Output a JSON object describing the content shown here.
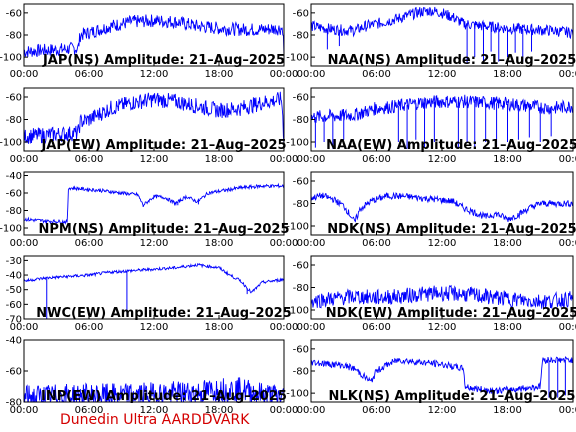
{
  "footer": "Dunedin Ultra AARDDVARK",
  "colors": {
    "trace": "#0000ff",
    "footer": "#d40000",
    "axes": "#000000"
  },
  "chart_data": [
    {
      "type": "line",
      "title": "JAP(NS) Amplitude: 21–Aug–2025",
      "x_ticks": [
        "00:00",
        "06:00",
        "12:00",
        "18:00",
        "00:00"
      ],
      "y_ticks": [
        "-60",
        "-80",
        "-100"
      ],
      "ylim": [
        -108,
        -52
      ],
      "series": [
        {
          "x": [
            0,
            5,
            5.2,
            6,
            8,
            10,
            12,
            14,
            16,
            18,
            20,
            22,
            23.9,
            24
          ],
          "y": [
            -95,
            -92,
            -80,
            -78,
            -72,
            -68,
            -67,
            -68,
            -72,
            -74,
            -75,
            -75,
            -74,
            -98
          ],
          "noise": 6
        }
      ]
    },
    {
      "type": "line",
      "title": "NAA(NS) Amplitude: 21–Aug–2025",
      "x_ticks": [
        "00:00",
        "06:00",
        "12:00",
        "18:00",
        "00:00"
      ],
      "y_ticks": [
        "-60",
        "-80",
        "-100"
      ],
      "ylim": [
        -108,
        -52
      ],
      "series": [
        {
          "x": [
            0,
            2,
            4,
            5,
            6,
            8,
            10,
            11,
            12,
            13,
            14,
            16,
            18,
            20,
            22,
            24
          ],
          "y": [
            -72,
            -75,
            -76,
            -72,
            -70,
            -65,
            -59,
            -58,
            -60,
            -64,
            -70,
            -72,
            -74,
            -75,
            -76,
            -78
          ],
          "noise": 5,
          "dips": [
            [
              1.5,
              -93
            ],
            [
              2.6,
              -90
            ],
            [
              14.3,
              -105
            ],
            [
              15,
              -100
            ],
            [
              15.8,
              -105
            ],
            [
              16.5,
              -95
            ],
            [
              17.2,
              -104
            ],
            [
              18,
              -100
            ],
            [
              18.7,
              -96
            ],
            [
              19.4,
              -104
            ],
            [
              20.2,
              -95
            ]
          ]
        }
      ]
    },
    {
      "type": "line",
      "title": "JAP(EW) Amplitude: 21–Aug–2025",
      "x_ticks": [
        "00:00",
        "06:00",
        "12:00",
        "18:00",
        "00:00"
      ],
      "y_ticks": [
        "-60",
        "-80",
        "-100"
      ],
      "ylim": [
        -108,
        -52
      ],
      "series": [
        {
          "x": [
            0,
            5,
            5.2,
            6,
            8,
            10,
            12,
            14,
            16,
            18,
            20,
            22,
            23.8,
            24
          ],
          "y": [
            -95,
            -92,
            -82,
            -80,
            -70,
            -65,
            -62,
            -64,
            -68,
            -72,
            -70,
            -65,
            -62,
            -100
          ],
          "noise": 7
        }
      ]
    },
    {
      "type": "line",
      "title": "NAA(EW) Amplitude: 21–Aug–2025",
      "x_ticks": [
        "00:00",
        "06:00",
        "12:00",
        "18:00",
        "00:00"
      ],
      "y_ticks": [
        "-60",
        "-80",
        "-100"
      ],
      "ylim": [
        -108,
        -52
      ],
      "series": [
        {
          "x": [
            0,
            4,
            6,
            8,
            10,
            12,
            14,
            16,
            18,
            20,
            22,
            24
          ],
          "y": [
            -78,
            -76,
            -70,
            -68,
            -65,
            -64,
            -64,
            -65,
            -66,
            -68,
            -70,
            -68
          ],
          "noise": 6,
          "dips": [
            [
              0.4,
              -105
            ],
            [
              1.2,
              -100
            ],
            [
              2,
              -106
            ],
            [
              3,
              -98
            ],
            [
              8,
              -100
            ],
            [
              8.8,
              -106
            ],
            [
              9.6,
              -98
            ],
            [
              10.4,
              -105
            ],
            [
              11.3,
              -100
            ],
            [
              13.5,
              -106
            ],
            [
              14.3,
              -100
            ],
            [
              15,
              -106
            ],
            [
              16,
              -100
            ],
            [
              17,
              -104
            ],
            [
              18,
              -100
            ],
            [
              19,
              -98
            ],
            [
              20,
              -96
            ],
            [
              21,
              -100
            ],
            [
              22,
              -95
            ]
          ]
        }
      ]
    },
    {
      "type": "line",
      "title": "NPM(NS) Amplitude: 21–Aug–2025",
      "x_ticks": [
        "00:00",
        "06:00",
        "12:00",
        "18:00",
        "00:00"
      ],
      "y_ticks": [
        "-40",
        "-60",
        "-80",
        "-100"
      ],
      "ylim": [
        -108,
        -36
      ],
      "series": [
        {
          "x": [
            0,
            2,
            4,
            4.1,
            5,
            7,
            9,
            10.5,
            11,
            12,
            13,
            14,
            15,
            16,
            17,
            18,
            20,
            22,
            24
          ],
          "y": [
            -90,
            -92,
            -93,
            -54,
            -55,
            -57,
            -60,
            -62,
            -74,
            -64,
            -65,
            -72,
            -64,
            -70,
            -60,
            -58,
            -54,
            -52,
            -52
          ],
          "noise": 2,
          "dips": [
            [
              11,
              -76
            ],
            [
              14.2,
              -74
            ],
            [
              16.1,
              -73
            ]
          ]
        }
      ]
    },
    {
      "type": "line",
      "title": "NDK(NS) Amplitude: 21–Aug–2025",
      "x_ticks": [
        "00:00",
        "06:00",
        "12:00",
        "18:00",
        "00:00"
      ],
      "y_ticks": [
        "-60",
        "-80",
        "-100"
      ],
      "ylim": [
        -108,
        -52
      ],
      "series": [
        {
          "x": [
            0,
            1,
            2,
            3,
            3.8,
            4,
            4.5,
            5.5,
            7,
            9,
            11,
            13,
            14,
            15,
            16,
            17,
            18,
            19,
            20,
            21,
            22,
            24
          ],
          "y": [
            -75,
            -73,
            -76,
            -82,
            -93,
            -97,
            -85,
            -78,
            -73,
            -74,
            -76,
            -78,
            -84,
            -88,
            -92,
            -89,
            -94,
            -90,
            -84,
            -80,
            -80,
            -80
          ],
          "noise": 3
        }
      ]
    },
    {
      "type": "line",
      "title": "NWC(EW) Amplitude: 21–Aug–2025",
      "x_ticks": [
        "00:00",
        "06:00",
        "12:00",
        "18:00",
        "00:00"
      ],
      "y_ticks": [
        "-30",
        "-40",
        "-50",
        "-60",
        "-70"
      ],
      "ylim": [
        -70,
        -27
      ],
      "series": [
        {
          "x": [
            0,
            2,
            4,
            6,
            8,
            10,
            12,
            14,
            16,
            18,
            19,
            20,
            21,
            22,
            24
          ],
          "y": [
            -44,
            -42,
            -41,
            -40,
            -38,
            -37,
            -36,
            -35,
            -33,
            -35,
            -40,
            -44,
            -52,
            -45,
            -43
          ],
          "noise": 1,
          "dips": [
            [
              2.1,
              -70
            ],
            [
              9.5,
              -68
            ],
            [
              20.6,
              -53
            ]
          ]
        }
      ]
    },
    {
      "type": "line",
      "title": "NDK(EW) Amplitude: 21–Aug–2025",
      "x_ticks": [
        "00:00",
        "06:00",
        "12:00",
        "18:00",
        "00:00"
      ],
      "y_ticks": [
        "-60",
        "-80",
        "-100"
      ],
      "ylim": [
        -108,
        -52
      ],
      "series": [
        {
          "x": [
            0,
            2,
            4,
            6,
            8,
            10,
            12,
            14,
            16,
            18,
            20,
            22,
            24
          ],
          "y": [
            -92,
            -90,
            -88,
            -89,
            -88,
            -86,
            -85,
            -86,
            -88,
            -90,
            -92,
            -92,
            -90
          ],
          "noise": 7
        }
      ]
    },
    {
      "type": "line",
      "title": "INP(EW) Amplitude: 21–Aug–2025",
      "x_ticks": [
        "00:00",
        "06:00",
        "12:00",
        "18:00",
        "00:00"
      ],
      "y_ticks": [
        "-40",
        "-60",
        "-80"
      ],
      "ylim": [
        -80,
        -40
      ],
      "series": [
        {
          "x": [
            0,
            4,
            8,
            12,
            16,
            18,
            20,
            22,
            24
          ],
          "y": [
            -77,
            -76,
            -76,
            -75,
            -74,
            -72,
            -72,
            -75,
            -77
          ],
          "noise": 8
        }
      ]
    },
    {
      "type": "line",
      "title": "NLK(NS) Amplitude: 21–Aug–2025",
      "x_ticks": [
        "00:00",
        "06:00",
        "12:00",
        "18:00",
        "00:00"
      ],
      "y_ticks": [
        "-60",
        "-80",
        "-100"
      ],
      "ylim": [
        -108,
        -52
      ],
      "series": [
        {
          "x": [
            0,
            1,
            2,
            3,
            4,
            5,
            5.5,
            6,
            7,
            8,
            10,
            12,
            14,
            14.1,
            15,
            17,
            19,
            21,
            21.2,
            21.3,
            22,
            24
          ],
          "y": [
            -72,
            -73,
            -74,
            -75,
            -78,
            -86,
            -90,
            -80,
            -74,
            -70,
            -72,
            -74,
            -78,
            -94,
            -96,
            -98,
            -96,
            -94,
            -70,
            -70,
            -70,
            -70
          ],
          "noise": 3,
          "dips": [
            [
              21.8,
              -104
            ],
            [
              22.6,
              -104
            ],
            [
              23.3,
              -102
            ]
          ]
        }
      ]
    }
  ]
}
